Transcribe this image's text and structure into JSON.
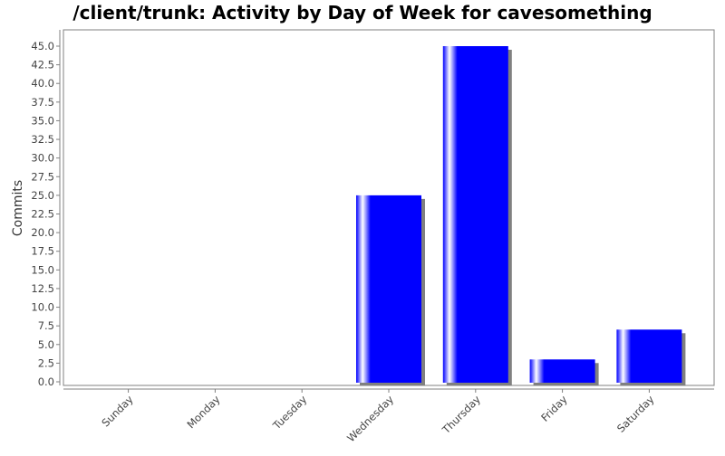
{
  "chart_data": {
    "type": "bar",
    "title": "/client/trunk: Activity by Day of Week for cavesomething",
    "xlabel": "",
    "ylabel": "Commits",
    "categories": [
      "Sunday",
      "Monday",
      "Tuesday",
      "Wednesday",
      "Thursday",
      "Friday",
      "Saturday"
    ],
    "values": [
      0,
      0,
      0,
      25,
      45,
      3,
      7
    ],
    "ylim": [
      0,
      45
    ],
    "yticks": [
      "0.0",
      "2.5",
      "5.0",
      "7.5",
      "10.0",
      "12.5",
      "15.0",
      "17.5",
      "20.0",
      "22.5",
      "25.0",
      "27.5",
      "30.0",
      "32.5",
      "35.0",
      "37.5",
      "40.0",
      "42.5",
      "45.0"
    ],
    "grid": false,
    "legend": "none",
    "colors": {
      "bar": "#0000ff",
      "shadow": "#808080",
      "axis": "#808080"
    }
  }
}
